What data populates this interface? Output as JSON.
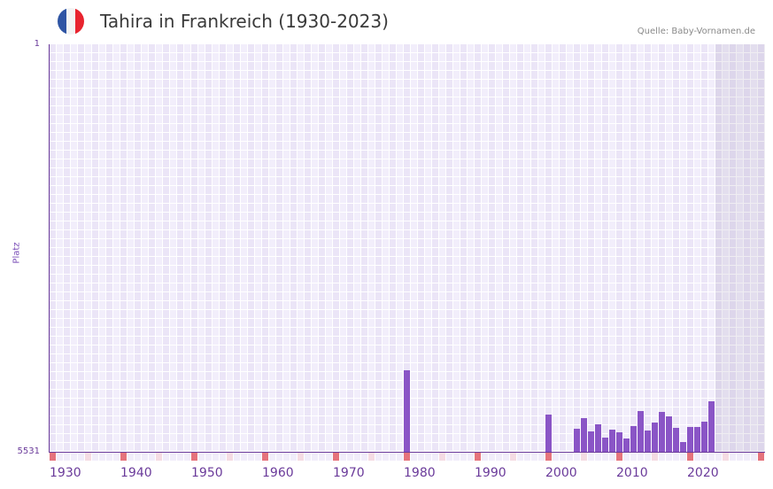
{
  "header": {
    "title": "Tahira in Frankreich (1930-2023)",
    "source": "Quelle: Baby-Vornamen.de",
    "flag_colors": [
      "#2f55a4",
      "#f4f4f4",
      "#e8242f"
    ]
  },
  "colors": {
    "bar": "#8a55c6",
    "axis": "#6a3a9a",
    "decade_marker": "#e5737c",
    "half_decade_marker": "#f5dbe3"
  },
  "chart_data": {
    "type": "bar",
    "title": "Tahira in Frankreich (1930-2023)",
    "xlabel": "",
    "ylabel": "Platz",
    "y_inverted": true,
    "ylim": [
      1,
      5531
    ],
    "xlim": [
      1930,
      2030
    ],
    "y_ticks": [
      "1",
      "5531"
    ],
    "x_ticks": [
      "1930",
      "1940",
      "1950",
      "1960",
      "1970",
      "1980",
      "1990",
      "2000",
      "2010",
      "2020"
    ],
    "future_shaded_from": 2024,
    "grid": true,
    "categories": [
      1980,
      2000,
      2004,
      2005,
      2006,
      2007,
      2008,
      2009,
      2010,
      2011,
      2012,
      2013,
      2014,
      2015,
      2016,
      2017,
      2018,
      2019,
      2020,
      2021,
      2022,
      2023
    ],
    "values": [
      4430,
      5025,
      5214,
      5073,
      5254,
      5157,
      5334,
      5226,
      5266,
      5346,
      5181,
      4977,
      5238,
      5130,
      4985,
      5046,
      5202,
      5394,
      5190,
      5190,
      5118,
      4841
    ]
  }
}
